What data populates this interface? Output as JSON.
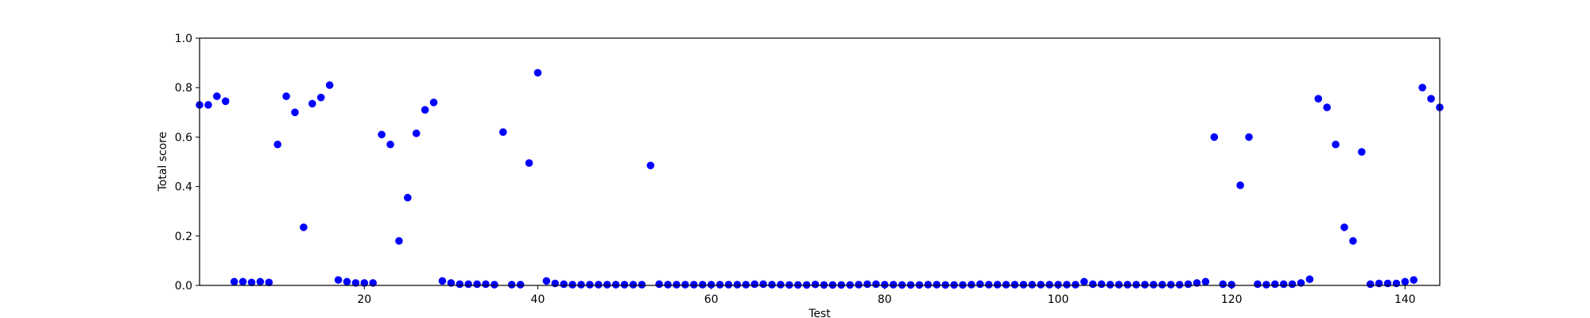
{
  "chart_data": {
    "type": "scatter",
    "xlabel": "Test",
    "ylabel": "Total score",
    "xlim": [
      1,
      144
    ],
    "ylim": [
      0.0,
      1.0
    ],
    "xticks": [
      20,
      40,
      60,
      80,
      100,
      120,
      140
    ],
    "yticks": [
      "0.0",
      "0.2",
      "0.4",
      "0.6",
      "0.8",
      "1.0"
    ],
    "grid": false,
    "marker_color": "#0000ff",
    "series": [
      {
        "x": [
          1,
          2,
          3,
          4,
          5,
          6,
          7,
          8,
          9,
          10,
          11,
          12,
          13,
          14,
          15,
          16,
          17,
          18,
          19,
          20,
          21,
          22,
          23,
          24,
          25,
          26,
          27,
          28,
          29,
          30,
          31,
          32,
          33,
          34,
          35,
          36,
          37,
          38,
          39,
          40,
          41,
          42,
          43,
          44,
          45,
          46,
          47,
          48,
          49,
          50,
          51,
          52,
          53,
          54,
          55,
          56,
          57,
          58,
          59,
          60,
          61,
          62,
          63,
          64,
          65,
          66,
          67,
          68,
          69,
          70,
          71,
          72,
          73,
          74,
          75,
          76,
          77,
          78,
          79,
          80,
          81,
          82,
          83,
          84,
          85,
          86,
          87,
          88,
          89,
          90,
          91,
          92,
          93,
          94,
          95,
          96,
          97,
          98,
          99,
          100,
          101,
          102,
          103,
          104,
          105,
          106,
          107,
          108,
          109,
          110,
          111,
          112,
          113,
          114,
          115,
          116,
          117,
          118,
          119,
          120,
          121,
          122,
          123,
          124,
          125,
          126,
          127,
          128,
          129,
          130,
          131,
          132,
          133,
          134,
          135,
          136,
          137,
          138,
          139,
          140,
          141,
          142,
          143,
          144
        ],
        "y": [
          0.73,
          0.73,
          0.765,
          0.745,
          0.015,
          0.015,
          0.012,
          0.015,
          0.012,
          0.57,
          0.765,
          0.7,
          0.235,
          0.735,
          0.76,
          0.81,
          0.022,
          0.015,
          0.01,
          0.01,
          0.01,
          0.61,
          0.57,
          0.18,
          0.355,
          0.615,
          0.71,
          0.74,
          0.018,
          0.01,
          0.005,
          0.005,
          0.005,
          0.005,
          0.003,
          0.62,
          0.003,
          0.003,
          0.495,
          0.86,
          0.018,
          0.008,
          0.005,
          0.003,
          0.003,
          0.003,
          0.003,
          0.003,
          0.003,
          0.003,
          0.003,
          0.003,
          0.485,
          0.005,
          0.003,
          0.003,
          0.003,
          0.003,
          0.003,
          0.003,
          0.003,
          0.003,
          0.003,
          0.003,
          0.005,
          0.005,
          0.003,
          0.003,
          0.002,
          0.002,
          0.002,
          0.004,
          0.002,
          0.002,
          0.002,
          0.002,
          0.003,
          0.005,
          0.005,
          0.003,
          0.003,
          0.002,
          0.002,
          0.002,
          0.003,
          0.003,
          0.002,
          0.002,
          0.002,
          0.003,
          0.005,
          0.003,
          0.003,
          0.003,
          0.003,
          0.003,
          0.003,
          0.003,
          0.003,
          0.003,
          0.003,
          0.003,
          0.015,
          0.005,
          0.005,
          0.003,
          0.003,
          0.003,
          0.003,
          0.003,
          0.003,
          0.003,
          0.003,
          0.003,
          0.005,
          0.01,
          0.015,
          0.6,
          0.005,
          0.003,
          0.405,
          0.6,
          0.005,
          0.003,
          0.005,
          0.005,
          0.005,
          0.01,
          0.025,
          0.755,
          0.72,
          0.57,
          0.235,
          0.18,
          0.54,
          0.005,
          0.008,
          0.008,
          0.008,
          0.015,
          0.022,
          0.8,
          0.755,
          0.72
        ]
      }
    ]
  }
}
